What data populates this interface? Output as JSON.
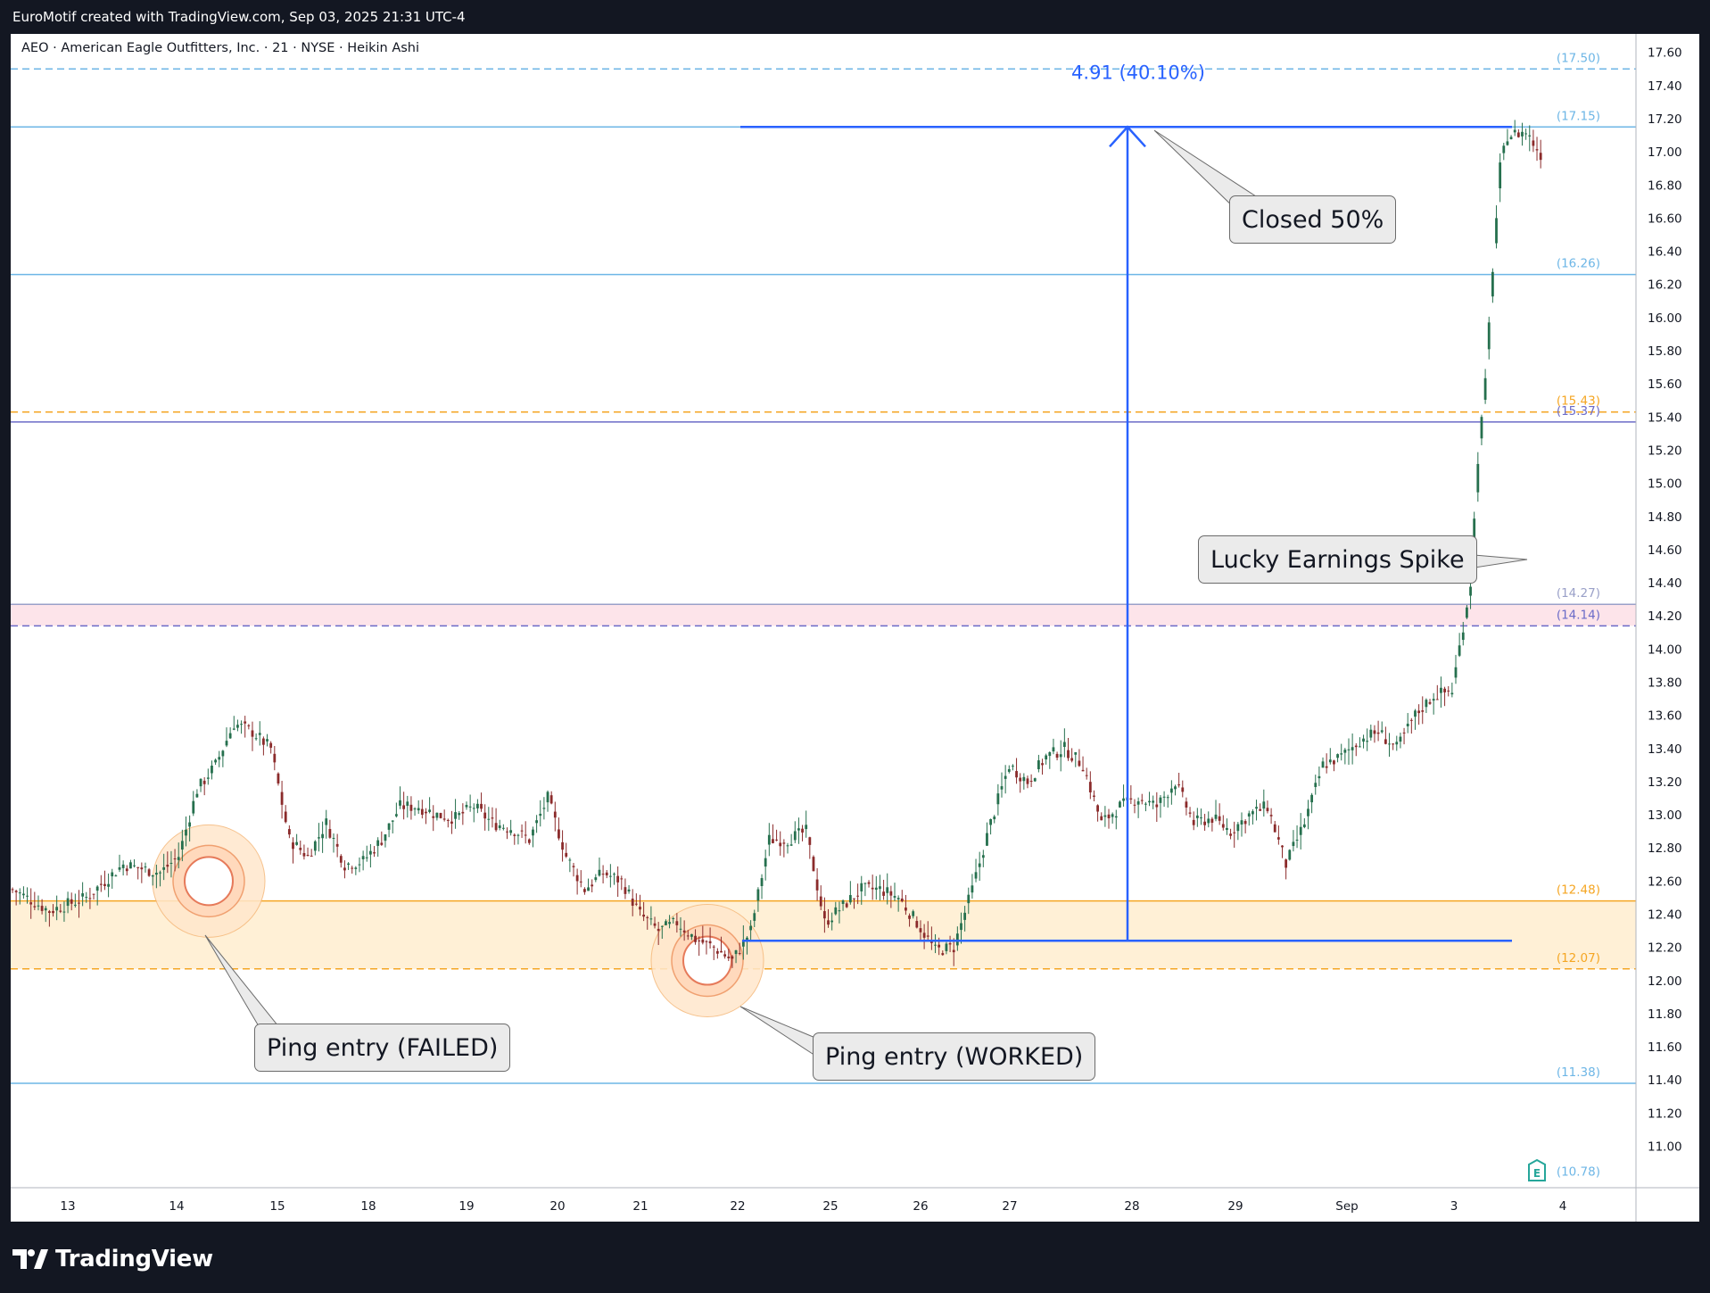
{
  "header": {
    "attribution": "EuroMotif created with TradingView.com, Sep 03, 2025 21:31 UTC-4"
  },
  "legend": {
    "text": "AEO · American Eagle Outfitters, Inc. · 21 · NYSE · Heikin Ashi"
  },
  "footer": {
    "brand": "TradingView"
  },
  "measure": {
    "label": "4.91 (40.10%)",
    "from_price": 12.24,
    "to_price": 17.15
  },
  "callouts": {
    "closed": "Closed 50%",
    "earnings": "Lucky Earnings Spike",
    "failed": "Ping entry (FAILED)",
    "worked": "Ping entry (WORKED)"
  },
  "earnings_badge": "E",
  "colors": {
    "up": "#26704e",
    "down": "#8b2b2b",
    "zone_fill": "#fff0d6",
    "zone_line": "#f5a623",
    "level_blue": "#6db6e6",
    "measure": "#2962ff",
    "pink_band": "#fde4ea"
  },
  "chart_data": {
    "type": "candlestick",
    "symbol": "AEO",
    "name": "American Eagle Outfitters, Inc.",
    "interval": "21",
    "exchange": "NYSE",
    "style": "Heikin Ashi",
    "ylim": [
      10.78,
      17.6
    ],
    "y_ticks": [
      "17.60",
      "17.40",
      "17.20",
      "17.00",
      "16.80",
      "16.60",
      "16.40",
      "16.20",
      "16.00",
      "15.80",
      "15.60",
      "15.40",
      "15.20",
      "15.00",
      "14.80",
      "14.60",
      "14.40",
      "14.20",
      "14.00",
      "13.80",
      "13.60",
      "13.40",
      "13.20",
      "13.00",
      "12.80",
      "12.60",
      "12.40",
      "12.20",
      "12.00",
      "11.80",
      "11.60",
      "11.40",
      "11.20",
      "11.00"
    ],
    "x_ticks": [
      "13",
      "14",
      "15",
      "18",
      "19",
      "20",
      "21",
      "22",
      "25",
      "26",
      "27",
      "28",
      "29",
      "Sep",
      "3",
      "4"
    ],
    "levels": [
      {
        "price": 17.5,
        "label": "(17.50)",
        "style": "dashed",
        "color": "#6db6e6"
      },
      {
        "price": 17.15,
        "label": "(17.15)",
        "style": "solid",
        "color": "#6db6e6"
      },
      {
        "price": 16.26,
        "label": "(16.26)",
        "style": "solid",
        "color": "#6db6e6"
      },
      {
        "price": 15.43,
        "label": "(15.43)",
        "style": "dashed",
        "color": "#f5a623"
      },
      {
        "price": 15.37,
        "label": "(15.37)",
        "style": "solid",
        "color": "#6b6bc8"
      },
      {
        "price": 14.27,
        "label": "(14.27)",
        "style": "solid",
        "color": "#9aa0c8"
      },
      {
        "price": 14.14,
        "label": "(14.14)",
        "style": "dashed",
        "color": "#6b6bc8"
      },
      {
        "price": 12.48,
        "label": "(12.48)",
        "style": "solid",
        "color": "#f5a623"
      },
      {
        "price": 12.07,
        "label": "(12.07)",
        "style": "dashed",
        "color": "#f5a623"
      },
      {
        "price": 11.38,
        "label": "(11.38)",
        "style": "solid",
        "color": "#6db6e6"
      },
      {
        "price": 10.78,
        "label": "(10.78)",
        "style": "solid",
        "color": "#6db6e6"
      }
    ],
    "demand_zone": [
      12.07,
      12.48
    ],
    "pink_band": [
      14.14,
      14.27
    ],
    "path": [
      [
        0,
        12.55
      ],
      [
        2,
        12.42
      ],
      [
        4,
        12.5
      ],
      [
        6,
        12.7
      ],
      [
        8,
        12.65
      ],
      [
        9,
        12.75
      ],
      [
        10,
        13.15
      ],
      [
        11,
        13.3
      ],
      [
        12,
        13.55
      ],
      [
        13,
        13.5
      ],
      [
        14,
        13.4
      ],
      [
        15,
        12.85
      ],
      [
        16,
        12.75
      ],
      [
        17,
        12.95
      ],
      [
        18,
        12.7
      ],
      [
        19,
        12.72
      ],
      [
        20,
        12.85
      ],
      [
        21,
        13.05
      ],
      [
        22,
        13.05
      ],
      [
        23,
        13.0
      ],
      [
        24,
        12.98
      ],
      [
        25,
        13.05
      ],
      [
        26,
        12.95
      ],
      [
        27,
        12.92
      ],
      [
        28,
        12.85
      ],
      [
        29,
        13.1
      ],
      [
        30,
        12.75
      ],
      [
        31,
        12.55
      ],
      [
        32,
        12.65
      ],
      [
        33,
        12.6
      ],
      [
        34,
        12.4
      ],
      [
        35,
        12.3
      ],
      [
        36,
        12.35
      ],
      [
        37,
        12.25
      ],
      [
        38,
        12.2
      ],
      [
        39,
        12.12
      ],
      [
        40,
        12.3
      ],
      [
        41,
        12.85
      ],
      [
        42,
        12.85
      ],
      [
        43,
        12.9
      ],
      [
        44,
        12.35
      ],
      [
        45,
        12.45
      ],
      [
        46,
        12.55
      ],
      [
        47,
        12.55
      ],
      [
        48,
        12.5
      ],
      [
        49,
        12.35
      ],
      [
        50,
        12.18
      ],
      [
        51,
        12.2
      ],
      [
        52,
        12.55
      ],
      [
        53,
        12.95
      ],
      [
        54,
        13.3
      ],
      [
        55,
        13.2
      ],
      [
        56,
        13.35
      ],
      [
        57,
        13.4
      ],
      [
        58,
        13.3
      ],
      [
        59,
        12.95
      ],
      [
        60,
        13.05
      ],
      [
        61,
        13.1
      ],
      [
        62,
        13.05
      ],
      [
        63,
        13.2
      ],
      [
        64,
        12.95
      ],
      [
        65,
        12.98
      ],
      [
        66,
        12.9
      ],
      [
        67,
        13.0
      ],
      [
        68,
        13.05
      ],
      [
        69,
        12.7
      ],
      [
        70,
        12.95
      ],
      [
        71,
        13.3
      ],
      [
        72,
        13.35
      ],
      [
        73,
        13.45
      ],
      [
        74,
        13.5
      ],
      [
        75,
        13.4
      ],
      [
        76,
        13.6
      ],
      [
        77,
        13.72
      ],
      [
        78,
        13.75
      ],
      [
        79,
        14.4
      ],
      [
        79.4,
        15.15
      ],
      [
        79.8,
        15.6
      ],
      [
        80.2,
        16.3
      ],
      [
        80.6,
        16.9
      ],
      [
        81,
        17.1
      ],
      [
        82,
        17.12
      ],
      [
        83,
        16.95
      ]
    ],
    "annotations": [
      {
        "text": "Closed 50%",
        "target": 17.15
      },
      {
        "text": "Lucky Earnings Spike",
        "target": 14.62
      },
      {
        "text": "Ping entry (FAILED)",
        "target": 12.5
      },
      {
        "text": "Ping entry (WORKED)",
        "target": 12.12
      },
      {
        "text": "4.91 (40.10%)",
        "from": 12.24,
        "to": 17.15
      }
    ]
  }
}
